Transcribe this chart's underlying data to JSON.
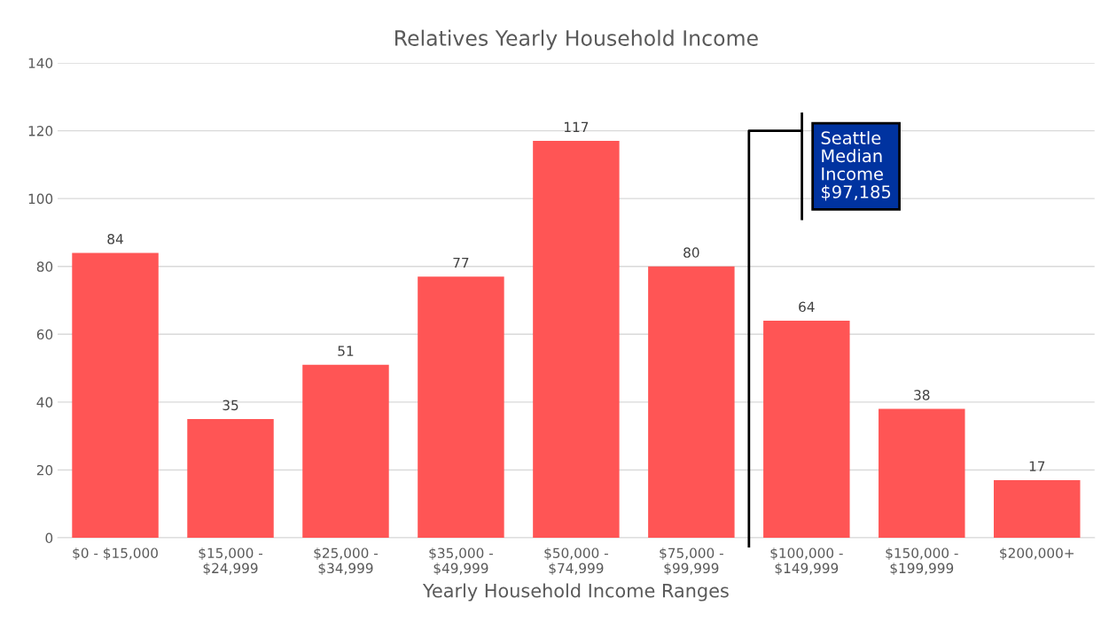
{
  "chart_data": {
    "type": "bar",
    "title": "Relatives Yearly Household Income",
    "xlabel": "Yearly Household Income Ranges",
    "categories": [
      "$0 - $15,000",
      "$15,000 - $24,999",
      "$25,000 - $34,999",
      "$35,000 - $49,999",
      "$50,000 - $74,999",
      "$75,000 - $99,999",
      "$100,000 - $149,999",
      "$150,000 - $199,999",
      "$200,000+"
    ],
    "values": [
      84,
      35,
      51,
      77,
      117,
      80,
      64,
      38,
      17
    ],
    "color": "#ff5555",
    "ylim": [
      0,
      140
    ],
    "yticks": [
      0,
      20,
      40,
      60,
      80,
      100,
      120,
      140
    ],
    "grid": "y",
    "data_labels": true,
    "legend": false,
    "annotations": [
      "Seattle Median Income $97,185"
    ]
  }
}
